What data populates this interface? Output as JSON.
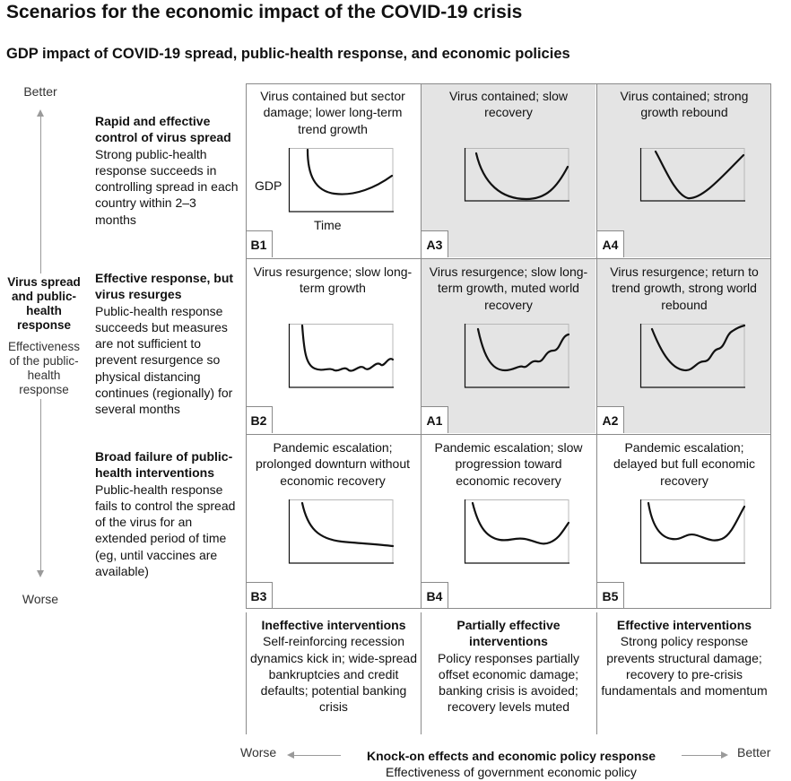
{
  "title": "Scenarios for the economic impact of the COVID-19 crisis",
  "subtitle": "GDP impact of COVID-19 spread, public-health response, and economic policies",
  "y_axis": {
    "top_label": "Better",
    "bottom_label": "Worse",
    "title": "Virus spread and public-health response",
    "subtitle": "Effectiveness of the public-health response"
  },
  "rows": [
    {
      "heading": "Rapid and effective control of virus spread",
      "text": "Strong public-health response succeeds in controlling spread in each country within 2–3 months"
    },
    {
      "heading": "Effective response, but virus resurges",
      "text": "Public-health response succeeds but measures are not sufficient to prevent resurgence so physical distancing continues (regionally) for several months"
    },
    {
      "heading": "Broad failure of public-health interventions",
      "text": "Public-health response fails to control the spread of the virus for an extended period of time (eg, until vaccines are available)"
    }
  ],
  "cells": [
    {
      "code": "B1",
      "label": "Virus contained but sector damage; lower long-term trend growth",
      "shaded": false,
      "curve": "contained_slow"
    },
    {
      "code": "A3",
      "label": "Virus contained; slow recovery",
      "shaded": true,
      "curve": "contained_u"
    },
    {
      "code": "A4",
      "label": "Virus contained; strong growth rebound",
      "shaded": true,
      "curve": "contained_v"
    },
    {
      "code": "B2",
      "label": "Virus resurgence; slow long-term growth",
      "shaded": false,
      "curve": "resurge_flat"
    },
    {
      "code": "A1",
      "label": "Virus resurgence; slow long-term growth, muted world recovery",
      "shaded": true,
      "curve": "resurge_muted"
    },
    {
      "code": "A2",
      "label": "Virus resurgence; return to trend growth, strong world rebound",
      "shaded": true,
      "curve": "resurge_strong"
    },
    {
      "code": "B3",
      "label": "Pandemic escalation; prolonged downturn without economic recovery",
      "shaded": false,
      "curve": "escalation_none"
    },
    {
      "code": "B4",
      "label": "Pandemic escalation; slow progression toward economic recovery",
      "shaded": false,
      "curve": "escalation_slow"
    },
    {
      "code": "B5",
      "label": "Pandemic escalation; delayed but full economic recovery",
      "shaded": false,
      "curve": "escalation_full"
    }
  ],
  "mini_chart": {
    "y_label": "GDP",
    "x_label": "Time"
  },
  "columns": [
    {
      "heading": "Ineffective interventions",
      "text": "Self-reinforcing recession dynamics kick in; wide-spread bankruptcies and credit defaults; potential banking crisis"
    },
    {
      "heading": "Partially effective interventions",
      "text": "Policy responses partially offset economic damage; banking crisis is avoided; recovery levels muted"
    },
    {
      "heading": "Effective interventions",
      "text": "Strong policy response prevents structural damage; recovery to pre-crisis fundamentals and momentum"
    }
  ],
  "x_axis": {
    "left_label": "Worse",
    "right_label": "Better",
    "title": "Knock-on effects and economic policy response",
    "subtitle": "Effectiveness of government economic policy"
  },
  "colors": {
    "shade": "#e4e4e4",
    "grid_line": "#8a8a8a",
    "curve": "#111111",
    "axis": "#9a9a9a"
  }
}
